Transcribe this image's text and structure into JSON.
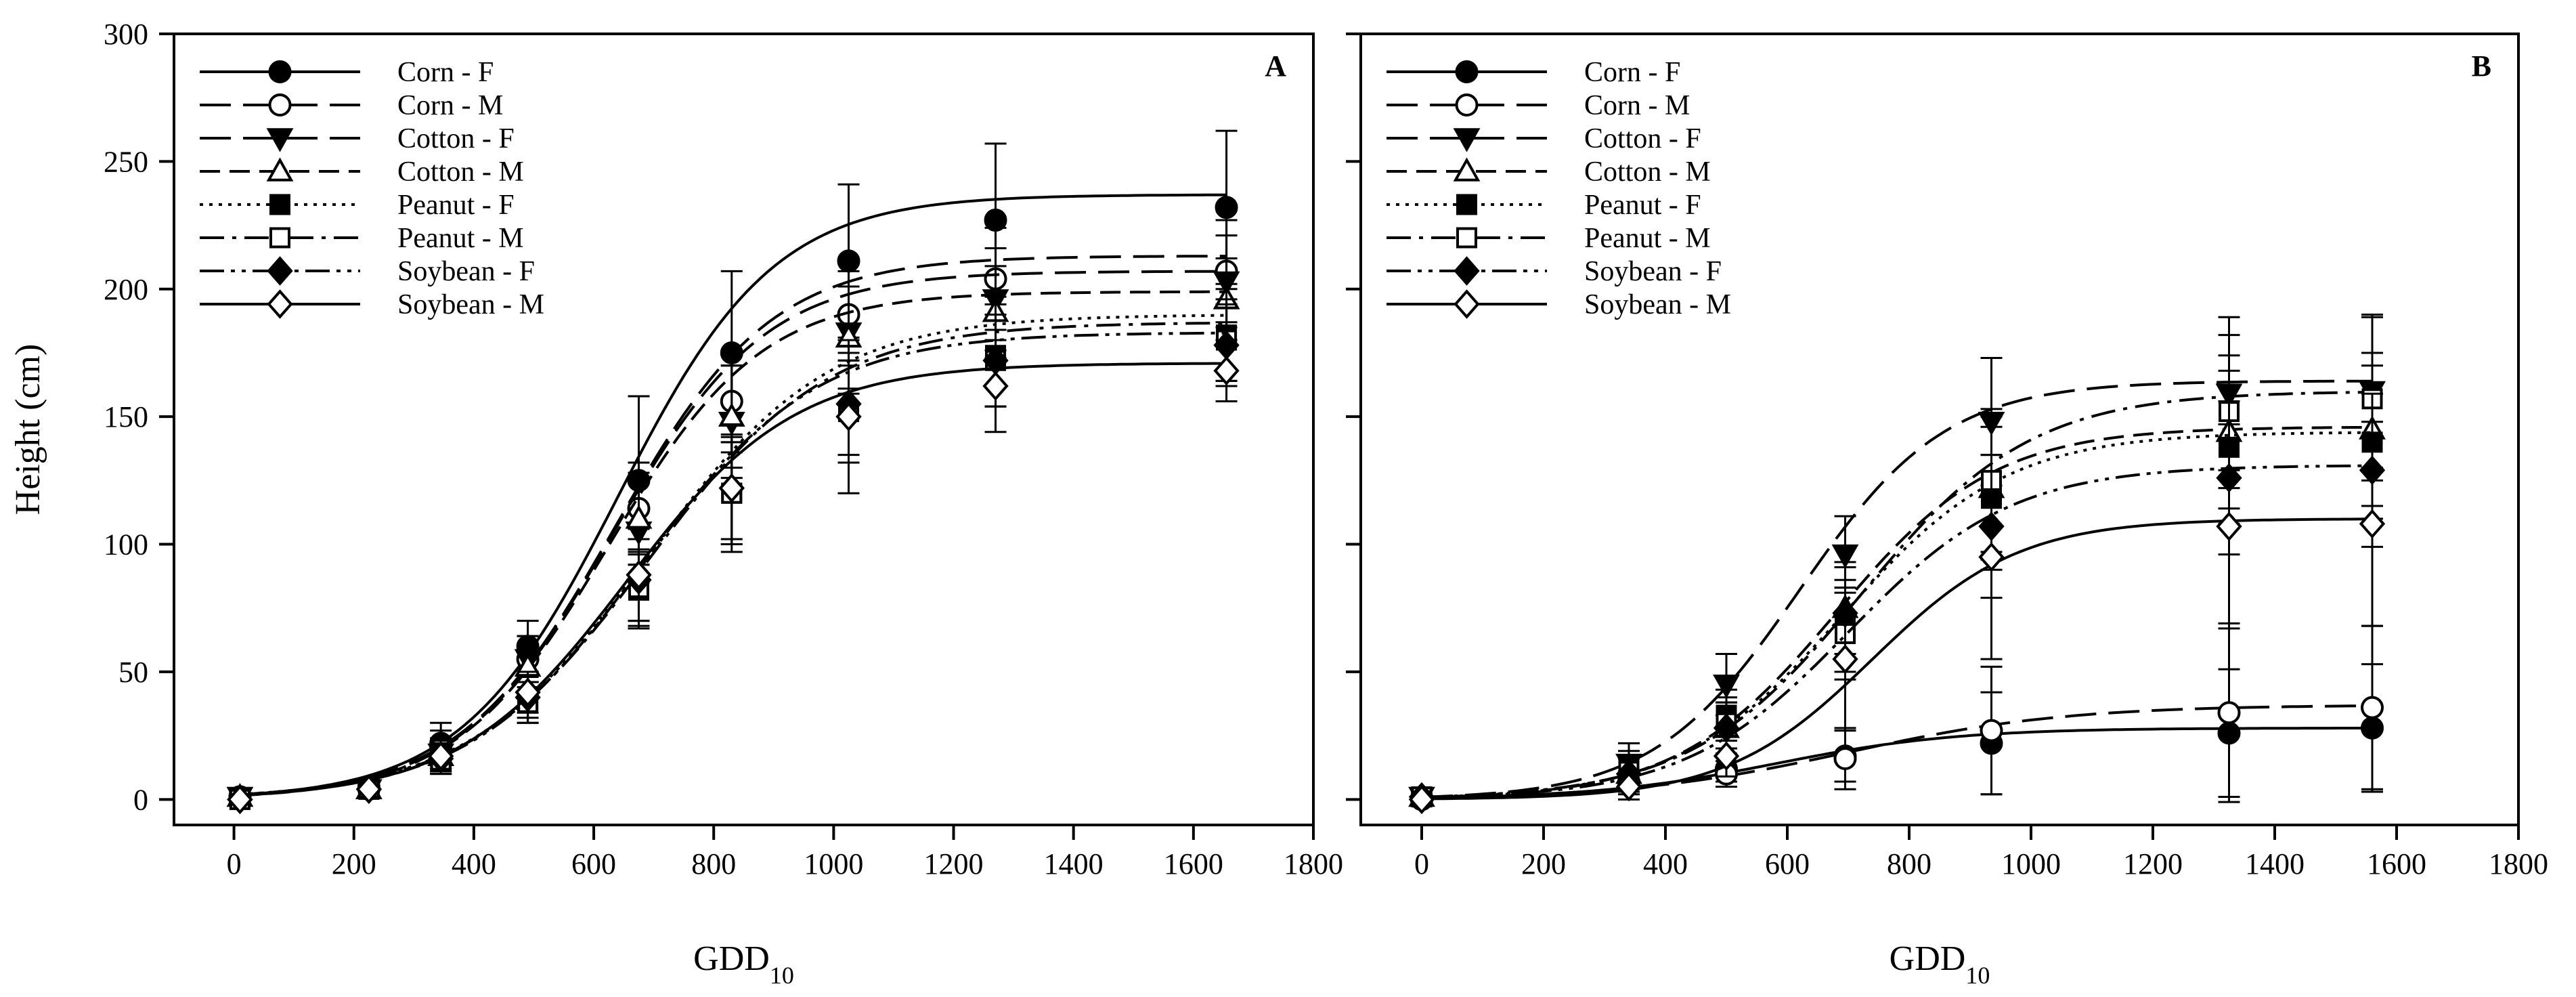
{
  "chart_data": [
    {
      "type": "line",
      "panel_label": "A",
      "xlabel": "GDD",
      "xlabel_sub": "10",
      "ylabel": "Height (cm)",
      "xlim": [
        -100,
        1800
      ],
      "ylim": [
        -10,
        300
      ],
      "xticks": [
        0,
        200,
        400,
        600,
        800,
        1000,
        1200,
        1400,
        1600,
        1800
      ],
      "yticks": [
        0,
        50,
        100,
        150,
        200,
        250,
        300
      ],
      "legend_position": "top-left",
      "series": [
        {
          "name": "Corn - F",
          "marker": "circle",
          "filled": true,
          "dash": "solid",
          "asym": 237,
          "mid": 640,
          "scale": 130,
          "x": [
            10,
            225,
            345,
            490,
            675,
            830,
            1025,
            1270,
            1655
          ],
          "y": [
            1,
            5,
            22,
            60,
            125,
            175,
            211,
            227,
            232
          ],
          "err": [
            2,
            3,
            8,
            10,
            33,
            32,
            30,
            30,
            30
          ]
        },
        {
          "name": "Corn - M",
          "marker": "circle",
          "filled": false,
          "dash": "longdash",
          "asym": 213,
          "mid": 635,
          "scale": 130,
          "x": [
            10,
            225,
            345,
            490,
            675,
            830,
            1025,
            1270,
            1655
          ],
          "y": [
            1,
            4,
            20,
            55,
            114,
            156,
            190,
            204,
            207
          ],
          "err": [
            2,
            3,
            7,
            9,
            18,
            20,
            20,
            20,
            20
          ]
        },
        {
          "name": "Cotton - F",
          "marker": "triangle-down",
          "filled": true,
          "dash": "longdash",
          "asym": 207,
          "mid": 630,
          "scale": 128,
          "x": [
            10,
            225,
            345,
            490,
            675,
            830,
            1025,
            1270,
            1655
          ],
          "y": [
            1,
            4,
            18,
            55,
            105,
            148,
            183,
            196,
            203
          ],
          "err": [
            2,
            3,
            6,
            9,
            20,
            22,
            24,
            20,
            18
          ]
        },
        {
          "name": "Cotton - M",
          "marker": "triangle-up",
          "filled": false,
          "dash": "dash",
          "asym": 199,
          "mid": 625,
          "scale": 127,
          "x": [
            10,
            225,
            345,
            490,
            675,
            830,
            1025,
            1270,
            1655
          ],
          "y": [
            1,
            4,
            17,
            52,
            110,
            150,
            181,
            191,
            196
          ],
          "err": [
            2,
            3,
            6,
            8,
            18,
            20,
            20,
            18,
            16
          ]
        },
        {
          "name": "Peanut - F",
          "marker": "square",
          "filled": true,
          "dash": "dot",
          "asym": 190,
          "mid": 690,
          "scale": 150,
          "x": [
            10,
            225,
            345,
            490,
            675,
            830,
            1025,
            1270,
            1655
          ],
          "y": [
            0,
            4,
            15,
            38,
            82,
            120,
            152,
            174,
            182
          ],
          "err": [
            2,
            3,
            5,
            8,
            15,
            20,
            20,
            20,
            18
          ]
        },
        {
          "name": "Peanut - M",
          "marker": "square",
          "filled": false,
          "dash": "dashdot",
          "asym": 187,
          "mid": 690,
          "scale": 150,
          "x": [
            10,
            225,
            345,
            490,
            675,
            830,
            1025,
            1270,
            1655
          ],
          "y": [
            0,
            4,
            15,
            38,
            83,
            120,
            152,
            172,
            180
          ],
          "err": [
            2,
            3,
            5,
            8,
            15,
            20,
            20,
            18,
            16
          ]
        },
        {
          "name": "Soybean - F",
          "marker": "diamond",
          "filled": true,
          "dash": "dashdotdot",
          "asym": 183,
          "mid": 680,
          "scale": 145,
          "x": [
            10,
            225,
            345,
            490,
            675,
            830,
            1025,
            1270,
            1655
          ],
          "y": [
            0,
            4,
            16,
            40,
            86,
            122,
            155,
            172,
            178
          ],
          "err": [
            2,
            3,
            5,
            8,
            16,
            20,
            20,
            18,
            16
          ]
        },
        {
          "name": "Soybean - M",
          "marker": "diamond",
          "filled": false,
          "dash": "solid",
          "asym": 171,
          "mid": 655,
          "scale": 140,
          "x": [
            10,
            225,
            345,
            490,
            675,
            830,
            1025,
            1270,
            1655
          ],
          "y": [
            0,
            4,
            17,
            42,
            88,
            122,
            150,
            162,
            168
          ],
          "err": [
            2,
            3,
            5,
            8,
            18,
            25,
            30,
            18,
            12
          ]
        }
      ]
    },
    {
      "type": "line",
      "panel_label": "B",
      "xlabel": "GDD",
      "xlabel_sub": "10",
      "ylabel": "",
      "xlim": [
        -100,
        1800
      ],
      "ylim": [
        -10,
        300
      ],
      "xticks": [
        0,
        200,
        400,
        600,
        800,
        1000,
        1200,
        1400,
        1600,
        1800
      ],
      "yticks": [
        0,
        50,
        100,
        150,
        200,
        250,
        300
      ],
      "legend_position": "top-left",
      "series": [
        {
          "name": "Corn - F",
          "marker": "circle",
          "filled": true,
          "dash": "solid",
          "asym": 28,
          "mid": 580,
          "scale": 150,
          "x": [
            0,
            340,
            500,
            695,
            935,
            1325,
            1560
          ],
          "y": [
            0,
            7,
            12,
            17,
            22,
            26,
            28
          ],
          "err": [
            2,
            4,
            5,
            10,
            20,
            25,
            25
          ]
        },
        {
          "name": "Corn - M",
          "marker": "circle",
          "filled": false,
          "dash": "longdash",
          "asym": 37,
          "mid": 700,
          "scale": 180,
          "x": [
            0,
            340,
            500,
            695,
            935,
            1325,
            1560
          ],
          "y": [
            0,
            6,
            10,
            16,
            27,
            34,
            36
          ],
          "err": [
            2,
            4,
            5,
            12,
            25,
            35,
            32
          ]
        },
        {
          "name": "Cotton - F",
          "marker": "triangle-down",
          "filled": true,
          "dash": "longdash",
          "asym": 164,
          "mid": 620,
          "scale": 120,
          "x": [
            0,
            340,
            500,
            695,
            935,
            1325,
            1560
          ],
          "y": [
            1,
            14,
            45,
            96,
            148,
            159,
            160
          ],
          "err": [
            2,
            8,
            12,
            15,
            25,
            30,
            30
          ]
        },
        {
          "name": "Cotton - M",
          "marker": "triangle-up",
          "filled": false,
          "dash": "dash",
          "asym": 146,
          "mid": 680,
          "scale": 130,
          "x": [
            0,
            340,
            500,
            695,
            935,
            1325,
            1560
          ],
          "y": [
            1,
            10,
            28,
            75,
            122,
            144,
            145
          ],
          "err": [
            2,
            6,
            10,
            18,
            28,
            30,
            30
          ]
        },
        {
          "name": "Peanut - F",
          "marker": "square",
          "filled": true,
          "dash": "dot",
          "asym": 144,
          "mid": 690,
          "scale": 135,
          "x": [
            0,
            340,
            500,
            695,
            935,
            1325,
            1560
          ],
          "y": [
            1,
            13,
            33,
            68,
            118,
            138,
            140
          ],
          "err": [
            2,
            6,
            10,
            18,
            28,
            30,
            30
          ]
        },
        {
          "name": "Peanut - M",
          "marker": "square",
          "filled": false,
          "dash": "dashdot",
          "asym": 160,
          "mid": 720,
          "scale": 140,
          "x": [
            0,
            340,
            500,
            695,
            935,
            1325,
            1560
          ],
          "y": [
            1,
            11,
            30,
            65,
            125,
            152,
            157
          ],
          "err": [
            2,
            6,
            10,
            18,
            28,
            30,
            32
          ]
        },
        {
          "name": "Soybean - F",
          "marker": "diamond",
          "filled": true,
          "dash": "dashdotdot",
          "asym": 131,
          "mid": 700,
          "scale": 135,
          "x": [
            0,
            340,
            500,
            695,
            935,
            1325,
            1560
          ],
          "y": [
            1,
            10,
            28,
            73,
            107,
            126,
            129
          ],
          "err": [
            2,
            6,
            10,
            18,
            28,
            30,
            30
          ]
        },
        {
          "name": "Soybean - M",
          "marker": "diamond",
          "filled": false,
          "dash": "solid",
          "asym": 110,
          "mid": 740,
          "scale": 120,
          "x": [
            0,
            340,
            500,
            695,
            935,
            1325,
            1560
          ],
          "y": [
            0,
            5,
            17,
            55,
            95,
            107,
            108
          ],
          "err": [
            2,
            5,
            8,
            28,
            40,
            40,
            40
          ]
        }
      ]
    }
  ]
}
